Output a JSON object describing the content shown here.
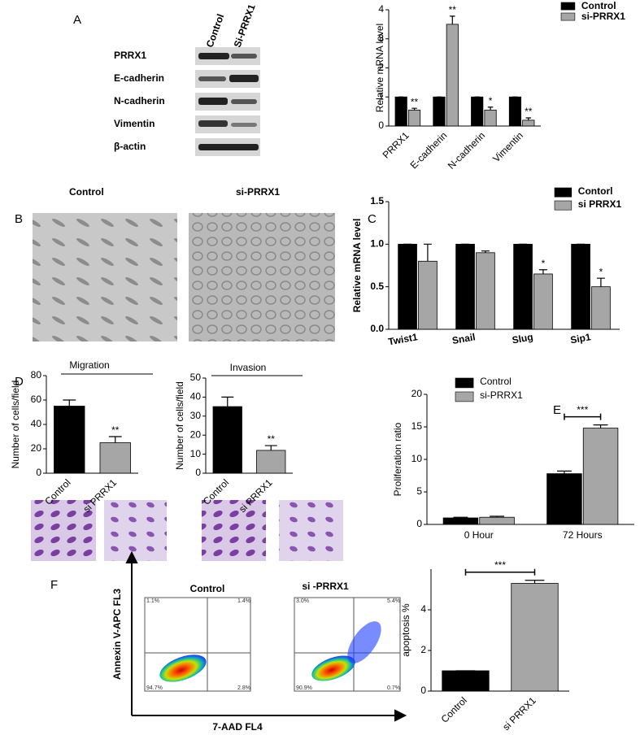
{
  "panel_letters": [
    "A",
    "B",
    "C",
    "D",
    "E",
    "F"
  ],
  "western_blot": {
    "lanes": [
      "Control",
      "Si-PRRX1"
    ],
    "proteins": [
      "PRRX1",
      "E-cadherin",
      "N-cadherin",
      "Vimentin",
      "β-actin"
    ]
  },
  "morphology": {
    "labels": [
      "Control",
      "si-PRRX1"
    ]
  },
  "transwell": {
    "labels": [
      "Migration",
      "Invasion"
    ]
  },
  "flow": {
    "titles": [
      "Control",
      "si -PRRX1"
    ],
    "y_axis": "Annexin V-APC FL3",
    "x_axis": "7-AAD FL4",
    "quadrants": [
      [
        "1.1%",
        "1.4%",
        "94.7%",
        "2.8%"
      ],
      [
        "3.0%",
        "5.4%",
        "90.9%",
        "0.7%"
      ]
    ]
  },
  "chart_data": [
    {
      "type": "bar",
      "ylabel": "Relative mRNA level",
      "categories": [
        "PRRX1",
        "E-cadherin",
        "N-cadherin",
        "Vimentin"
      ],
      "series": [
        {
          "name": "Control",
          "color": "#000000",
          "values": [
            1,
            1,
            1,
            1
          ],
          "errors": [
            0,
            0,
            0,
            0
          ]
        },
        {
          "name": "si-PRRX1",
          "color": "#a6a6a6",
          "values": [
            0.55,
            3.5,
            0.55,
            0.2
          ],
          "errors": [
            0.06,
            0.28,
            0.1,
            0.08
          ]
        }
      ],
      "annotations": [
        "**",
        "**",
        "*",
        "**"
      ],
      "ylim": [
        0,
        4
      ],
      "yticks": [
        0,
        1,
        2,
        3,
        4
      ]
    },
    {
      "type": "bar",
      "ylabel": "Relative mRNA level",
      "categories": [
        "Twist1",
        "Snail",
        "Slug",
        "Sip1"
      ],
      "series": [
        {
          "name": "Contorl",
          "color": "#000000",
          "values": [
            1,
            1,
            1,
            1
          ],
          "errors": [
            0,
            0,
            0,
            0
          ]
        },
        {
          "name": "si PRRX1",
          "color": "#a6a6a6",
          "values": [
            0.8,
            0.9,
            0.65,
            0.5
          ],
          "errors": [
            0.2,
            0.02,
            0.05,
            0.1
          ]
        }
      ],
      "annotations": [
        null,
        null,
        "*",
        "*"
      ],
      "ylim": [
        0,
        1.5
      ],
      "yticks": [
        {
          "value": 0,
          "label": "0.0"
        },
        {
          "value": 0.5,
          "label": "0.5"
        },
        {
          "value": 1,
          "label": "1.0"
        },
        {
          "value": 1.5,
          "label": "1.5"
        }
      ]
    },
    {
      "type": "bar",
      "ylabel": "Number of cells/field",
      "categories": [
        "Control",
        "si PRRX1"
      ],
      "values": [
        55,
        25
      ],
      "errors": [
        5,
        5
      ],
      "colors": [
        "#000000",
        "#a6a6a6"
      ],
      "annotations": [
        null,
        "**"
      ],
      "ylim": [
        0,
        80
      ],
      "yticks": [
        0,
        20,
        40,
        60,
        80
      ]
    },
    {
      "type": "bar",
      "ylabel": "Number of cells/field",
      "categories": [
        "Control",
        "si PRRX1"
      ],
      "values": [
        35,
        12
      ],
      "errors": [
        5,
        2.5
      ],
      "colors": [
        "#000000",
        "#a6a6a6"
      ],
      "annotations": [
        null,
        "**"
      ],
      "ylim": [
        0,
        50
      ],
      "yticks": [
        0,
        10,
        20,
        30,
        40,
        50
      ]
    },
    {
      "type": "bar",
      "ylabel": "Proliferation ratio",
      "categories": [
        "0 Hour",
        "72 Hours"
      ],
      "series": [
        {
          "name": "Control",
          "color": "#000000",
          "values": [
            1,
            7.8
          ],
          "errors": [
            0.1,
            0.4
          ]
        },
        {
          "name": "si-PRRX1",
          "color": "#a6a6a6",
          "values": [
            1.1,
            14.8
          ],
          "errors": [
            0.15,
            0.5
          ]
        }
      ],
      "annotations": [
        null,
        "***"
      ],
      "bracket": true,
      "ylim": [
        0,
        20
      ],
      "yticks": [
        0,
        5,
        10,
        15,
        20
      ]
    },
    {
      "type": "bar",
      "ylabel": "apoptosis %",
      "categories": [
        "Control",
        "si PRRX1"
      ],
      "values": [
        1,
        5.3
      ],
      "errors": [
        0,
        0.15
      ],
      "colors": [
        "#000000",
        "#a6a6a6"
      ],
      "annotations": [
        null,
        "***"
      ],
      "bracket": true,
      "ylim": [
        0,
        6
      ],
      "yticks": [
        0,
        2,
        4
      ]
    }
  ]
}
